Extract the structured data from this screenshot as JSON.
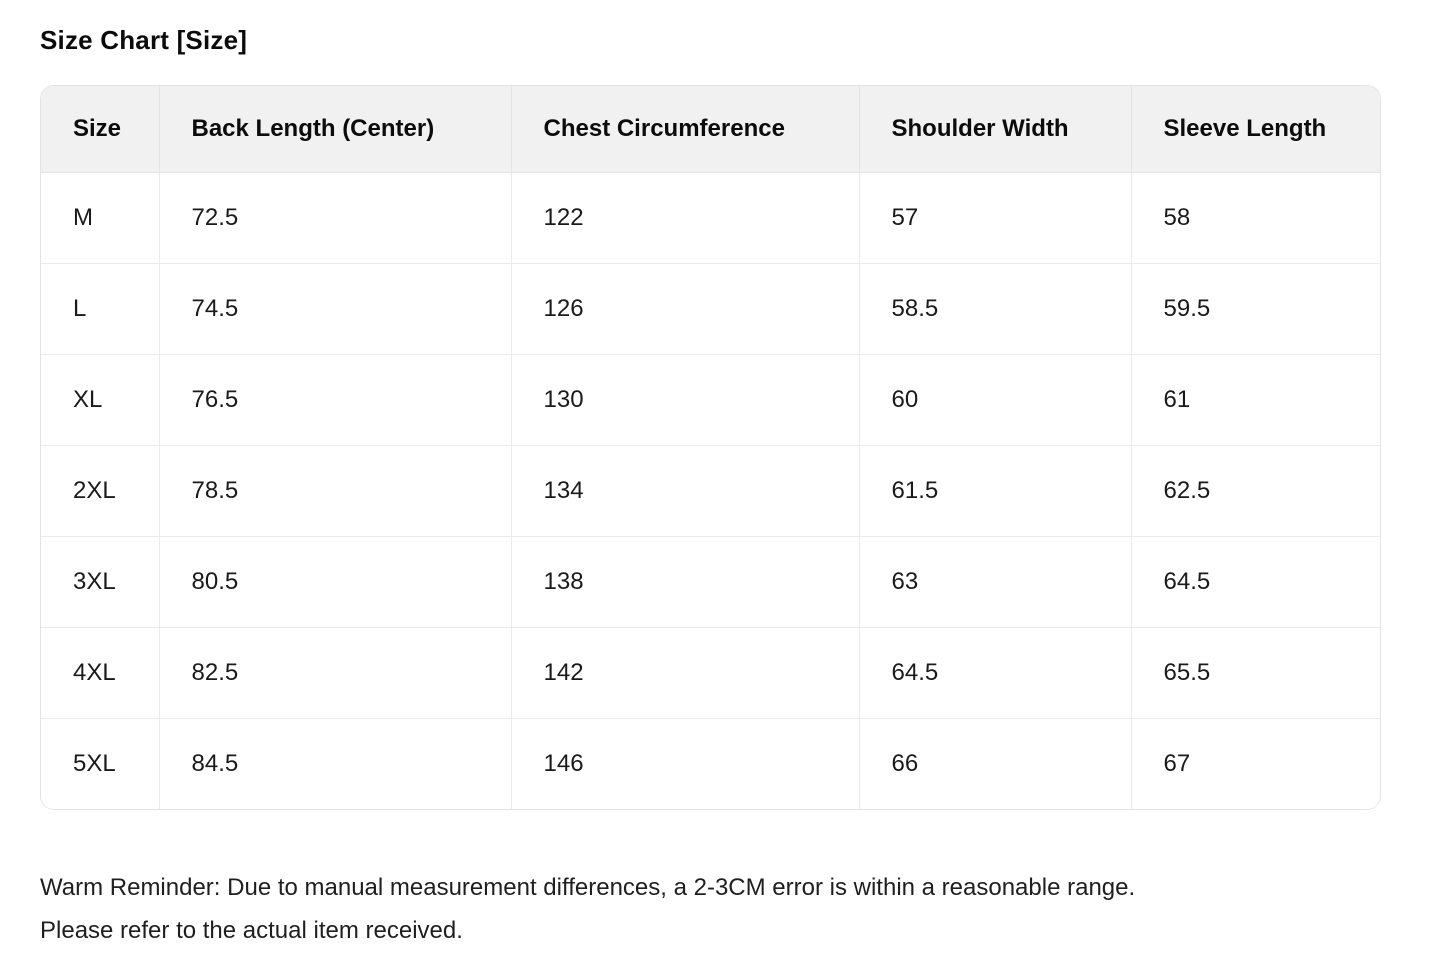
{
  "page": {
    "title": "Size Chart [Size]",
    "note_line1": "Warm Reminder: Due to manual measurement differences, a 2-3CM error is within a reasonable range.",
    "note_line2": "Please refer to the actual item received."
  },
  "table": {
    "headers": [
      "Size",
      "Back Length (Center)",
      "Chest Circumference",
      "Shoulder Width",
      "Sleeve Length"
    ],
    "rows": [
      {
        "size": "M",
        "back_length": "72.5",
        "chest": "122",
        "shoulder": "57",
        "sleeve": "58"
      },
      {
        "size": "L",
        "back_length": "74.5",
        "chest": "126",
        "shoulder": "58.5",
        "sleeve": "59.5"
      },
      {
        "size": "XL",
        "back_length": "76.5",
        "chest": "130",
        "shoulder": "60",
        "sleeve": "61"
      },
      {
        "size": "2XL",
        "back_length": "78.5",
        "chest": "134",
        "shoulder": "61.5",
        "sleeve": "62.5"
      },
      {
        "size": "3XL",
        "back_length": "80.5",
        "chest": "138",
        "shoulder": "63",
        "sleeve": "64.5"
      },
      {
        "size": "4XL",
        "back_length": "82.5",
        "chest": "142",
        "shoulder": "64.5",
        "sleeve": "65.5"
      },
      {
        "size": "5XL",
        "back_length": "84.5",
        "chest": "146",
        "shoulder": "66",
        "sleeve": "67"
      }
    ]
  },
  "colors": {
    "header_bg": "#f1f1f1",
    "outer_border": "#e4e4e4",
    "grid_line": "#ebebeb",
    "text": "#111111"
  }
}
